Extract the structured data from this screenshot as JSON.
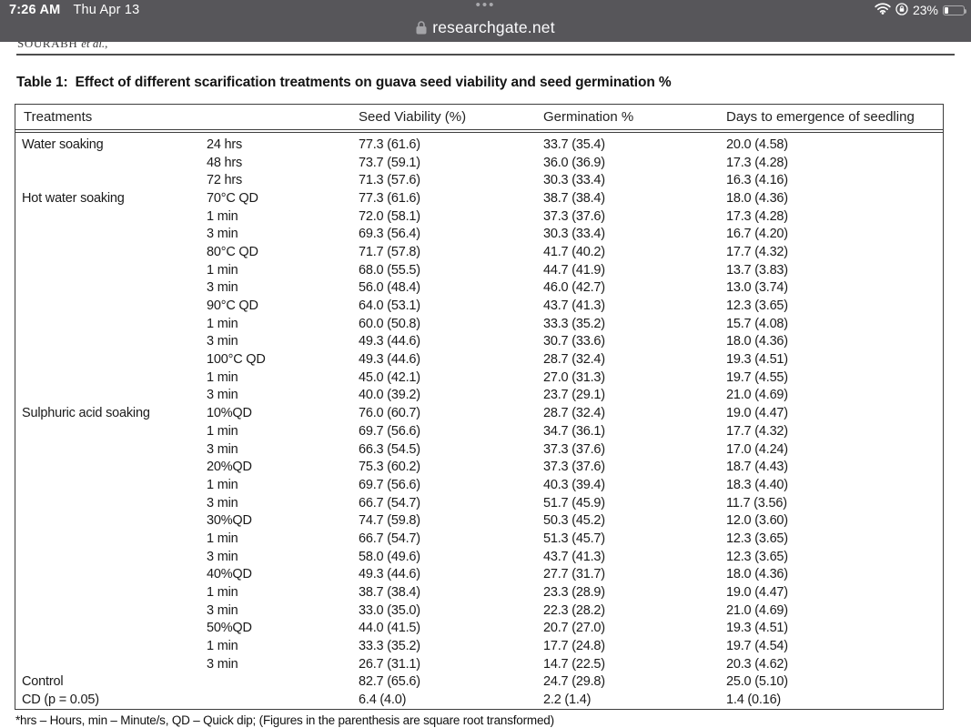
{
  "status_bar": {
    "time": "7:26 AM",
    "date": "Thu Apr 13",
    "tab_dots": "•••",
    "battery_percent": "23%"
  },
  "browser": {
    "url": "researchgate.net"
  },
  "article": {
    "running_head": "Sourabh",
    "running_head_et_al": "et al.,",
    "title_label": "Table 1:",
    "title_text": "Effect of different scarification treatments on guava seed viability and seed germination %",
    "footnote": "*hrs – Hours, min – Minute/s, QD – Quick dip; (Figures in the parenthesis are square root transformed)"
  },
  "table": {
    "headers": [
      "Treatments",
      "Seed Viability (%)",
      "Germination %",
      "Days to emergence of seedling"
    ],
    "rows": [
      [
        "Water soaking",
        "24 hrs",
        "77.3 (61.6)",
        "33.7 (35.4)",
        "20.0 (4.58)"
      ],
      [
        "",
        "48 hrs",
        "73.7 (59.1)",
        "36.0 (36.9)",
        "17.3 (4.28)"
      ],
      [
        "",
        "72 hrs",
        "71.3 (57.6)",
        "30.3 (33.4)",
        "16.3 (4.16)"
      ],
      [
        "Hot water soaking",
        "70°C QD",
        "77.3 (61.6)",
        "38.7 (38.4)",
        "18.0 (4.36)"
      ],
      [
        "",
        "1 min",
        "72.0 (58.1)",
        "37.3 (37.6)",
        "17.3 (4.28)"
      ],
      [
        "",
        "3 min",
        "69.3 (56.4)",
        "30.3 (33.4)",
        "16.7 (4.20)"
      ],
      [
        "",
        "80°C QD",
        "71.7 (57.8)",
        "41.7 (40.2)",
        "17.7 (4.32)"
      ],
      [
        "",
        "1 min",
        "68.0 (55.5)",
        "44.7 (41.9)",
        "13.7 (3.83)"
      ],
      [
        "",
        "3 min",
        "56.0 (48.4)",
        "46.0 (42.7)",
        "13.0 (3.74)"
      ],
      [
        "",
        "90°C QD",
        "64.0 (53.1)",
        "43.7 (41.3)",
        "12.3 (3.65)"
      ],
      [
        "",
        "1 min",
        "60.0 (50.8)",
        "33.3 (35.2)",
        "15.7 (4.08)"
      ],
      [
        "",
        "3 min",
        "49.3 (44.6)",
        "30.7 (33.6)",
        "18.0 (4.36)"
      ],
      [
        "",
        "100°C QD",
        "49.3 (44.6)",
        "28.7 (32.4)",
        "19.3 (4.51)"
      ],
      [
        "",
        "1 min",
        "45.0 (42.1)",
        "27.0 (31.3)",
        "19.7 (4.55)"
      ],
      [
        "",
        "3 min",
        "40.0 (39.2)",
        "23.7 (29.1)",
        "21.0 (4.69)"
      ],
      [
        "Sulphuric acid soaking",
        "10%QD",
        "76.0 (60.7)",
        "28.7 (32.4)",
        "19.0 (4.47)"
      ],
      [
        "",
        "1 min",
        "69.7 (56.6)",
        "34.7 (36.1)",
        "17.7 (4.32)"
      ],
      [
        "",
        "3 min",
        "66.3 (54.5)",
        "37.3 (37.6)",
        "17.0 (4.24)"
      ],
      [
        "",
        "20%QD",
        "75.3 (60.2)",
        "37.3 (37.6)",
        "18.7 (4.43)"
      ],
      [
        "",
        "1 min",
        "69.7 (56.6)",
        "40.3 (39.4)",
        "18.3 (4.40)"
      ],
      [
        "",
        "3 min",
        "66.7 (54.7)",
        "51.7 (45.9)",
        "11.7 (3.56)"
      ],
      [
        "",
        "30%QD",
        "74.7 (59.8)",
        "50.3 (45.2)",
        "12.0 (3.60)"
      ],
      [
        "",
        "1 min",
        "66.7 (54.7)",
        "51.3 (45.7)",
        "12.3 (3.65)"
      ],
      [
        "",
        "3 min",
        "58.0 (49.6)",
        "43.7 (41.3)",
        "12.3 (3.65)"
      ],
      [
        "",
        "40%QD",
        "49.3 (44.6)",
        "27.7 (31.7)",
        "18.0 (4.36)"
      ],
      [
        "",
        "1 min",
        "38.7 (38.4)",
        "23.3 (28.9)",
        "19.0 (4.47)"
      ],
      [
        "",
        "3 min",
        "33.0 (35.0)",
        "22.3 (28.2)",
        "21.0 (4.69)"
      ],
      [
        "",
        "50%QD",
        "44.0 (41.5)",
        "20.7 (27.0)",
        "19.3 (4.51)"
      ],
      [
        "",
        "1 min",
        "33.3 (35.2)",
        "17.7 (24.8)",
        "19.7 (4.54)"
      ],
      [
        "",
        "3 min",
        "26.7 (31.1)",
        "14.7 (22.5)",
        "20.3 (4.62)"
      ],
      [
        "Control",
        "",
        "82.7 (65.6)",
        "24.7 (29.8)",
        "25.0 (5.10)"
      ],
      [
        "CD (p = 0.05)",
        "",
        "6.4 (4.0)",
        "2.2 (1.4)",
        "1.4 (0.16)"
      ]
    ]
  },
  "colors": {
    "statusbar_bg": "#57565a",
    "statusbar_text": "#ffffff",
    "page_bg": "#ffffff",
    "table_border": "#3d3d3d",
    "body_text": "#1a1a1a"
  }
}
